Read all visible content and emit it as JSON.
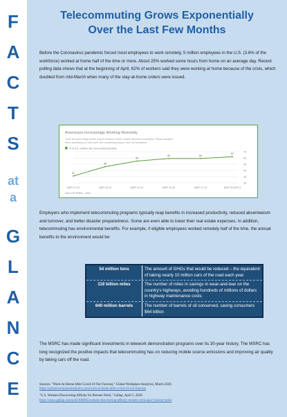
{
  "sidebar": {
    "letters": [
      "F",
      "A",
      "C",
      "T",
      "S",
      "at",
      "a",
      "G",
      "L",
      "A",
      "N",
      "C",
      "E"
    ]
  },
  "title": {
    "line1": "Telecommuting Grows Exponentially",
    "line2": "Over the Last Few Months"
  },
  "intro": "Before the Coronavirus pandemic forced most employees to work remotely, 5 million employees in the U.S. (3.6% of the workforce) worked at home half of the time or more. About 25% worked some hours from home on an average day. Recent polling data shows that at the beginning of April, 62% of workers said they were working at home because of the crisis, which doubled from mid-March when many of the stay-at-home orders were issued.",
  "chart_data": {
    "type": "line",
    "title": "Americans Increasingly Working Remotely",
    "subtitle_line1": "There are some things people may do because of their concern about the coronavirus. Please indicate if",
    "subtitle_line2": "this is something you have done, are considering doing or have not considered.",
    "legend": "% of U.S. workers who have worked remotely",
    "categories": [
      "MAR 13-15",
      "MAR 16-19",
      "MAR 20-22",
      "MAR 23-26",
      "MAR 27-29",
      "MAR 30-APR 2"
    ],
    "values": [
      31,
      46,
      55,
      59,
      59,
      62
    ],
    "ylim": [
      20,
      70
    ],
    "yticks": [
      20,
      30,
      40,
      50,
      60,
      70
    ],
    "source": "GALLUP PANEL, 2020",
    "color": "#5a9e3c"
  },
  "benefits": "Employers who implement telecommuting programs typically reap benefits in increased productivity, reduced absenteeism and turnover, and better disaster preparedness. Some are even able to lower their real estate expenses. In addition, telecommuting has environmental benefits. For example, if eligible employees worked remotely half of the time, the annual benefits to the environment would be:",
  "stats": [
    {
      "key": "54 million tons",
      "value": "The amount of GHGs that would be reduced – the equivalent of taking nearly 10 million cars of the road each year"
    },
    {
      "key": "119 billion miles",
      "value": "The number of miles in savings in wear-and-tear on the country's highways, avoiding hundreds of millions of dollars in highway maintenance costs"
    },
    {
      "key": "640 million barrels",
      "value": "The number of barrels of oil conserved, saving consumers $64 billion"
    }
  ],
  "msrc": "The MSRC has made significant investments in telework demonstration programs over its 30-year history. The MSRC has long recognized the positive impacts that telecommuting has on reducing mobile source emissions and improving air quality by taking cars off the road.",
  "sources": {
    "line1": "Sources: \"Work-At-Home After Covid-19 Our Forecast,\" Global Workplace Analytics, March 2020.",
    "link1": "https://globalworkplaceanalytics.com/work-at-home-after-covid-19-our-forecast",
    "line2": "\"U.S. Workers Discovering Affinity for Remote Work,\" Gallup, April 3, 2020.",
    "link2": "https://news.gallup.com/poll/306695/workers-discovering-affinity-remote-work.aspx?version=print"
  }
}
